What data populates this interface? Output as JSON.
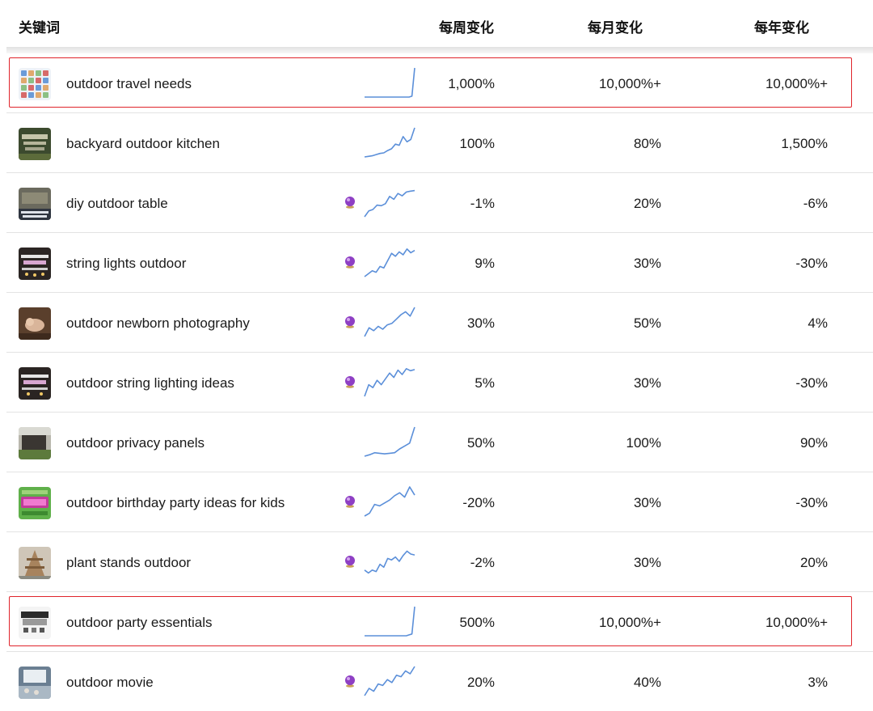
{
  "header": {
    "keyword": "关键词",
    "weekly": "每周变化",
    "monthly": "每月变化",
    "yearly": "每年变化"
  },
  "colors": {
    "sparkline": "#5b8fd9",
    "highlight": "#e0242b",
    "divider": "#e3e3e3",
    "predict_icon": "#8e3fc4"
  },
  "rows": [
    {
      "keyword": "outdoor travel needs",
      "weekly": "1,000%",
      "monthly": "10,000%+",
      "yearly": "10,000%+",
      "predicted": false,
      "highlighted": true,
      "thumb": "thumb-travel",
      "trend": [
        0,
        0,
        0,
        0,
        0,
        0,
        0,
        0,
        0,
        0,
        0,
        0,
        0,
        0,
        0,
        0,
        0,
        3,
        100
      ]
    },
    {
      "keyword": "backyard outdoor kitchen",
      "weekly": "100%",
      "monthly": "80%",
      "yearly": "1,500%",
      "predicted": false,
      "highlighted": false,
      "thumb": "thumb-kitchen",
      "trend": [
        0,
        2,
        4,
        8,
        12,
        14,
        22,
        28,
        44,
        40,
        70,
        52,
        60,
        100
      ]
    },
    {
      "keyword": "diy outdoor table",
      "weekly": "-1%",
      "monthly": "20%",
      "yearly": "-6%",
      "predicted": true,
      "highlighted": false,
      "thumb": "thumb-table",
      "trend": [
        0,
        20,
        25,
        40,
        38,
        45,
        70,
        60,
        80,
        72,
        85,
        88,
        90
      ]
    },
    {
      "keyword": "string lights outdoor",
      "weekly": "9%",
      "monthly": "30%",
      "yearly": "-30%",
      "predicted": true,
      "highlighted": false,
      "thumb": "thumb-lights",
      "trend": [
        0,
        10,
        20,
        15,
        35,
        30,
        55,
        80,
        70,
        85,
        75,
        95,
        82,
        90
      ]
    },
    {
      "keyword": "outdoor newborn photography",
      "weekly": "30%",
      "monthly": "50%",
      "yearly": "4%",
      "predicted": true,
      "highlighted": false,
      "thumb": "thumb-newborn",
      "trend": [
        0,
        30,
        20,
        35,
        25,
        40,
        45,
        60,
        75,
        85,
        70,
        100
      ]
    },
    {
      "keyword": "outdoor string lighting ideas",
      "weekly": "5%",
      "monthly": "30%",
      "yearly": "-30%",
      "predicted": true,
      "highlighted": false,
      "thumb": "thumb-string",
      "trend": [
        0,
        40,
        30,
        55,
        40,
        60,
        80,
        65,
        90,
        75,
        95,
        88,
        92
      ]
    },
    {
      "keyword": "outdoor privacy panels",
      "weekly": "50%",
      "monthly": "100%",
      "yearly": "90%",
      "predicted": false,
      "highlighted": false,
      "thumb": "thumb-privacy",
      "trend": [
        0,
        5,
        12,
        10,
        8,
        10,
        12,
        25,
        35,
        45,
        100
      ]
    },
    {
      "keyword": "outdoor birthday party ideas for kids",
      "weekly": "-20%",
      "monthly": "30%",
      "yearly": "-30%",
      "predicted": true,
      "highlighted": false,
      "thumb": "thumb-birthday",
      "trend": [
        0,
        10,
        40,
        35,
        45,
        55,
        70,
        80,
        65,
        100,
        72
      ]
    },
    {
      "keyword": "plant stands outdoor",
      "weekly": "-2%",
      "monthly": "30%",
      "yearly": "20%",
      "predicted": true,
      "highlighted": false,
      "thumb": "thumb-plant",
      "trend": [
        20,
        10,
        20,
        15,
        40,
        30,
        60,
        55,
        65,
        50,
        70,
        85,
        75,
        72
      ]
    },
    {
      "keyword": "outdoor party essentials",
      "weekly": "500%",
      "monthly": "10,000%+",
      "yearly": "10,000%+",
      "predicted": false,
      "highlighted": true,
      "thumb": "thumb-party",
      "trend": [
        0,
        0,
        0,
        0,
        0,
        0,
        0,
        0,
        0,
        0,
        0,
        0,
        0,
        0,
        0,
        0,
        3,
        6,
        100
      ]
    },
    {
      "keyword": "outdoor movie",
      "weekly": "20%",
      "monthly": "40%",
      "yearly": "3%",
      "predicted": true,
      "highlighted": false,
      "thumb": "thumb-movie",
      "trend": [
        0,
        25,
        15,
        40,
        35,
        55,
        45,
        70,
        65,
        85,
        75,
        100
      ]
    }
  ]
}
